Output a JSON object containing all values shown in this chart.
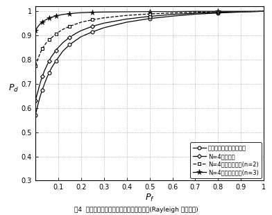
{
  "xlabel": "$P_f$",
  "ylabel": "$P_d$",
  "xlim": [
    0,
    1.0
  ],
  "ylim": [
    0.3,
    1.02
  ],
  "xticks": [
    0.1,
    0.2,
    0.3,
    0.4,
    0.5,
    0.6,
    0.7,
    0.8,
    0.9,
    1.0
  ],
  "yticks": [
    0.3,
    0.4,
    0.5,
    0.6,
    0.7,
    0.8,
    0.9,
    1.0
  ],
  "caption": "图4  单用户、合作感知和加权合作感知对比(Rayleigh 衰落环境)",
  "legend": [
    "信噪比最高的单用户检测",
    "N=4合作感知",
    "N=4加权合作感知(n=2)",
    "N=4加权合作感知(n=3)"
  ],
  "curve1_pf": [
    0.0,
    0.01,
    0.02,
    0.03,
    0.04,
    0.05,
    0.06,
    0.07,
    0.08,
    0.09,
    0.1,
    0.12,
    0.15,
    0.18,
    0.2,
    0.25,
    0.3,
    0.4,
    0.5,
    0.6,
    0.7,
    0.8,
    0.9,
    1.0
  ],
  "curve1_pd": [
    0.57,
    0.61,
    0.645,
    0.675,
    0.7,
    0.725,
    0.745,
    0.765,
    0.78,
    0.795,
    0.808,
    0.835,
    0.862,
    0.882,
    0.895,
    0.915,
    0.932,
    0.955,
    0.97,
    0.98,
    0.988,
    0.993,
    0.997,
    1.0
  ],
  "curve2_pf": [
    0.0,
    0.01,
    0.02,
    0.03,
    0.04,
    0.05,
    0.06,
    0.07,
    0.08,
    0.09,
    0.1,
    0.12,
    0.15,
    0.18,
    0.2,
    0.25,
    0.3,
    0.4,
    0.5,
    0.6,
    0.7,
    0.8,
    0.9,
    1.0
  ],
  "curve2_pd": [
    0.63,
    0.665,
    0.7,
    0.73,
    0.755,
    0.775,
    0.795,
    0.812,
    0.825,
    0.838,
    0.85,
    0.87,
    0.893,
    0.91,
    0.92,
    0.938,
    0.951,
    0.968,
    0.979,
    0.987,
    0.992,
    0.996,
    0.998,
    1.0
  ],
  "curve3_pf": [
    0.0,
    0.01,
    0.02,
    0.03,
    0.04,
    0.05,
    0.06,
    0.07,
    0.08,
    0.09,
    0.1,
    0.12,
    0.15,
    0.18,
    0.2,
    0.25,
    0.3,
    0.4,
    0.5,
    0.6,
    0.7,
    0.8,
    0.9,
    1.0
  ],
  "curve3_pd": [
    0.775,
    0.8,
    0.825,
    0.845,
    0.86,
    0.872,
    0.882,
    0.89,
    0.898,
    0.905,
    0.913,
    0.925,
    0.938,
    0.948,
    0.955,
    0.965,
    0.973,
    0.983,
    0.989,
    0.993,
    0.996,
    0.998,
    0.999,
    1.0
  ],
  "curve4_pf": [
    0.0,
    0.01,
    0.02,
    0.03,
    0.04,
    0.05,
    0.06,
    0.07,
    0.08,
    0.09,
    0.1,
    0.12,
    0.15,
    0.18,
    0.2,
    0.25,
    0.3,
    0.4,
    0.5,
    0.6,
    0.7,
    0.8,
    0.9,
    1.0
  ],
  "curve4_pd": [
    0.92,
    0.935,
    0.947,
    0.956,
    0.962,
    0.967,
    0.971,
    0.975,
    0.978,
    0.981,
    0.983,
    0.987,
    0.99,
    0.993,
    0.994,
    0.996,
    0.997,
    0.998,
    0.999,
    0.999,
    1.0,
    1.0,
    1.0,
    1.0
  ],
  "colors": [
    "#000000",
    "#000000",
    "#000000",
    "#000000"
  ],
  "markers": [
    "o",
    "o",
    "s",
    "s"
  ],
  "linestyles": [
    "-",
    "-",
    "--",
    "-"
  ],
  "markersizes": [
    3.5,
    3.5,
    3.5,
    4.5
  ],
  "marker_every": [
    3,
    3,
    3,
    3
  ]
}
